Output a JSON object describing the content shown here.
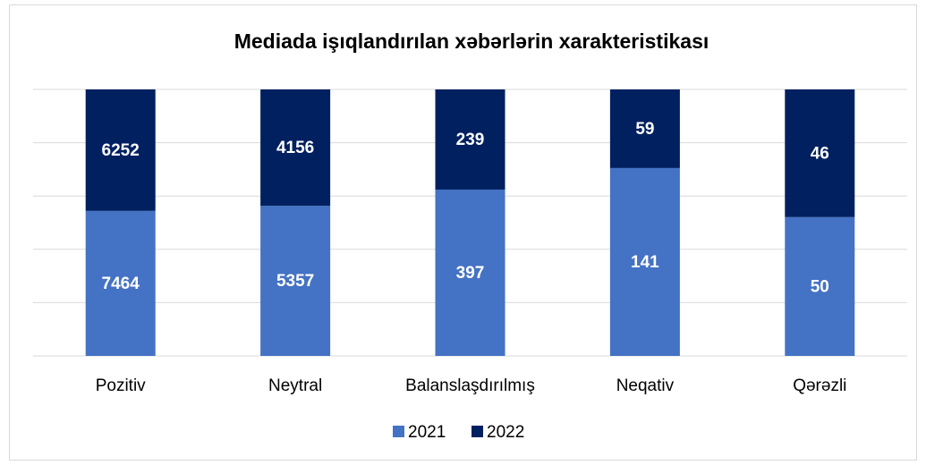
{
  "chart_data": {
    "type": "bar",
    "stacking": "percent",
    "title": "Mediada işıqlandırılan xəbərlərin xarakteristikası",
    "categories": [
      "Pozitiv",
      "Neytral",
      "Balanslaşdırılmış",
      "Neqativ",
      "Qərəzli"
    ],
    "series": [
      {
        "name": "2021",
        "color": "#4472c4",
        "values": [
          7464,
          5357,
          397,
          141,
          50
        ]
      },
      {
        "name": "2022",
        "color": "#002060",
        "values": [
          6252,
          4156,
          239,
          59,
          46
        ]
      }
    ],
    "ylim": [
      0,
      100
    ],
    "yticks": [
      0,
      20,
      40,
      60,
      80,
      100
    ],
    "show_ytick_labels": false,
    "grid": true,
    "legend": "bottom"
  }
}
